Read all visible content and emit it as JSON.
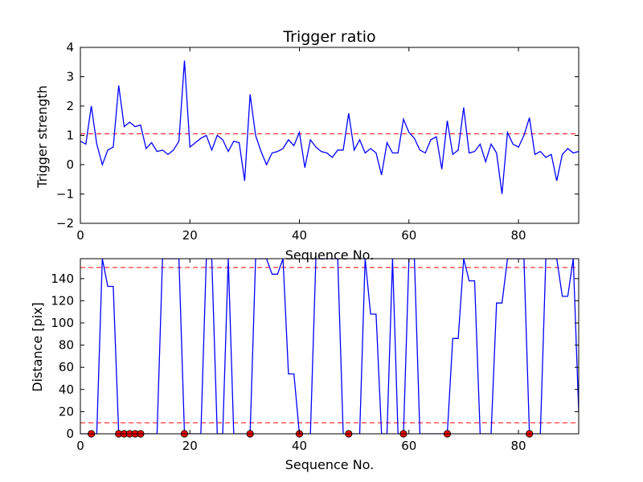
{
  "chart_data": [
    {
      "type": "line",
      "title": "Trigger ratio",
      "xlabel": "Sequence No.",
      "ylabel": "Trigger strength",
      "xlim": [
        0,
        91
      ],
      "ylim": [
        -2,
        4
      ],
      "xticks": [
        0,
        20,
        40,
        60,
        80
      ],
      "yticks": [
        -2,
        -1,
        0,
        1,
        2,
        3,
        4
      ],
      "grid": false,
      "line_color": "#0000ff",
      "threshold": {
        "value": 1.05,
        "color": "#ff0000",
        "style": "dashed"
      },
      "series": [
        {
          "x": [
            0,
            1,
            2,
            3,
            4,
            5,
            6,
            7,
            8,
            9,
            10,
            11,
            12,
            13,
            14,
            15,
            16,
            17,
            18,
            19,
            20,
            21,
            22,
            23,
            24,
            25,
            26,
            27,
            28,
            29,
            30,
            31,
            32,
            33,
            34,
            35,
            36,
            37,
            38,
            39,
            40,
            41,
            42,
            43,
            44,
            45,
            46,
            47,
            48,
            49,
            50,
            51,
            52,
            53,
            54,
            55,
            56,
            57,
            58,
            59,
            60,
            61,
            62,
            63,
            64,
            65,
            66,
            67,
            68,
            69,
            70,
            71,
            72,
            73,
            74,
            75,
            76,
            77,
            78,
            79,
            80,
            81,
            82,
            83,
            84,
            85,
            86,
            87,
            88,
            89,
            90,
            91
          ],
          "values": [
            0.8,
            0.7,
            2.0,
            0.7,
            0.0,
            0.5,
            0.6,
            2.7,
            1.3,
            1.45,
            1.3,
            1.35,
            0.55,
            0.75,
            0.45,
            0.5,
            0.35,
            0.5,
            0.8,
            3.55,
            0.6,
            0.75,
            0.9,
            1.0,
            0.5,
            1.0,
            0.85,
            0.45,
            0.8,
            0.75,
            -0.55,
            2.4,
            1.0,
            0.45,
            0.0,
            0.4,
            0.45,
            0.55,
            0.85,
            0.65,
            1.1,
            -0.1,
            0.85,
            0.6,
            0.45,
            0.4,
            0.25,
            0.5,
            0.5,
            1.75,
            0.5,
            0.85,
            0.4,
            0.55,
            0.4,
            -0.35,
            0.75,
            0.4,
            0.4,
            1.55,
            1.1,
            0.9,
            0.5,
            0.4,
            0.85,
            0.95,
            -0.15,
            1.5,
            0.35,
            0.5,
            1.95,
            0.4,
            0.45,
            0.7,
            0.1,
            0.7,
            0.4,
            -1.0,
            1.1,
            0.7,
            0.6,
            1.0,
            1.6,
            0.35,
            0.45,
            0.25,
            0.35,
            -0.55,
            0.35,
            0.55,
            0.4,
            0.45
          ]
        }
      ]
    },
    {
      "type": "line",
      "title": "",
      "xlabel": "Sequence No.",
      "ylabel": "Distance [pix]",
      "xlim": [
        0,
        91
      ],
      "ylim": [
        0,
        158
      ],
      "xticks": [
        0,
        20,
        40,
        60,
        80
      ],
      "yticks": [
        0,
        20,
        40,
        60,
        80,
        100,
        120,
        140
      ],
      "grid": false,
      "line_color": "#0000ff",
      "thresholds": [
        {
          "value": 150,
          "color": "#ff0000",
          "style": "dashed"
        },
        {
          "value": 10,
          "color": "#ff0000",
          "style": "dashed"
        }
      ],
      "series": [
        {
          "x": [
            0,
            1,
            2,
            3,
            4,
            5,
            6,
            7,
            8,
            9,
            10,
            11,
            12,
            13,
            14,
            15,
            16,
            17,
            18,
            19,
            20,
            21,
            22,
            23,
            24,
            25,
            26,
            27,
            28,
            29,
            30,
            31,
            32,
            33,
            34,
            35,
            36,
            37,
            38,
            39,
            40,
            41,
            42,
            43,
            44,
            45,
            46,
            47,
            48,
            49,
            50,
            51,
            52,
            53,
            54,
            55,
            56,
            57,
            58,
            59,
            60,
            61,
            62,
            63,
            64,
            65,
            66,
            67,
            68,
            69,
            70,
            71,
            72,
            73,
            74,
            75,
            76,
            77,
            78,
            79,
            80,
            81,
            82,
            83,
            84,
            85,
            86,
            87,
            88,
            89,
            90,
            91
          ],
          "values": [
            0,
            0,
            0,
            0,
            158,
            133,
            133,
            0,
            0,
            0,
            0,
            0,
            0,
            0,
            0,
            158,
            158,
            158,
            158,
            0,
            0,
            0,
            0,
            158,
            158,
            0,
            0,
            158,
            0,
            0,
            0,
            0,
            158,
            158,
            158,
            144,
            144,
            158,
            54,
            54,
            0,
            0,
            0,
            158,
            158,
            158,
            158,
            158,
            0,
            0,
            0,
            0,
            158,
            108,
            108,
            0,
            0,
            158,
            0,
            0,
            158,
            158,
            0,
            0,
            0,
            0,
            0,
            0,
            86,
            86,
            158,
            138,
            138,
            0,
            0,
            0,
            118,
            118,
            158,
            158,
            158,
            158,
            0,
            0,
            0,
            158,
            158,
            158,
            124,
            124,
            158,
            20
          ]
        }
      ],
      "markers": {
        "color": "#ff0000",
        "x": [
          2,
          7,
          8,
          9,
          10,
          11,
          19,
          31,
          40,
          49,
          59,
          67,
          82
        ],
        "values": [
          0,
          0,
          0,
          0,
          0,
          0,
          0,
          0,
          0,
          0,
          0,
          0,
          0
        ]
      }
    }
  ]
}
